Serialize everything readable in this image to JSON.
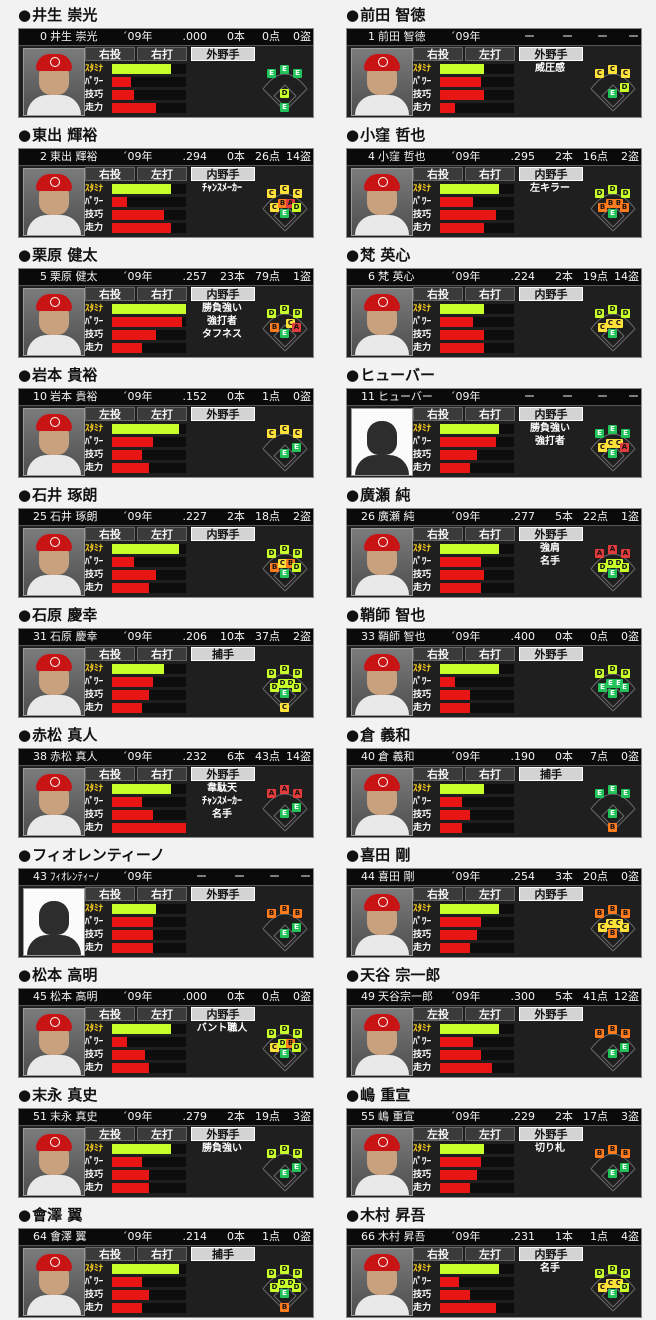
{
  "labels": {
    "stamina": "ｽﾀﾐﾅ",
    "power": "ﾊﾟﾜｰ",
    "skill": "技巧",
    "speed": "走力",
    "year": "´09年"
  },
  "colors": {
    "stamina": "#c8ff2a",
    "bars": "#e81515",
    "background": "#f2f2f2"
  },
  "players": [
    {
      "title": "井生 崇光",
      "stat_name": "井生 崇光",
      "no": "0",
      "avg": ".000",
      "hr": "0本",
      "rbi": "0点",
      "sb": "0盗",
      "throw": "右投",
      "bat": "右打",
      "position": "外野手",
      "skills": [],
      "silhouette": false,
      "stamina": 0.8,
      "power": 0.25,
      "technique": 0.3,
      "speed": 0.6,
      "fielding": {
        "LF": "E",
        "CF": "E",
        "RF": "E",
        "3B": "",
        "SS": "",
        "2B": "",
        "1B": "",
        "C": "E",
        "P": "D"
      }
    },
    {
      "title": "前田 智徳",
      "stat_name": "前田 智徳",
      "no": "1",
      "avg": "ー",
      "hr": "ー",
      "rbi": "ー",
      "sb": "ー",
      "throw": "右投",
      "bat": "左打",
      "position": "外野手",
      "skills": [
        "威圧感"
      ],
      "silhouette": false,
      "stamina": 0.6,
      "power": 0.55,
      "technique": 0.6,
      "speed": 0.2,
      "fielding": {
        "LF": "C",
        "CF": "C",
        "RF": "C",
        "3B": "",
        "SS": "",
        "2B": "",
        "1B": "D",
        "C": "",
        "P": "E"
      }
    },
    {
      "title": "東出 輝裕",
      "stat_name": "東出 輝裕",
      "no": "2",
      "avg": ".294",
      "hr": "0本",
      "rbi": "26点",
      "sb": "14盗",
      "throw": "右投",
      "bat": "左打",
      "position": "内野手",
      "skills": [
        "ﾁｬﾝｽﾒｰｶｰ"
      ],
      "silhouette": false,
      "stamina": 0.8,
      "power": 0.2,
      "technique": 0.7,
      "speed": 0.8,
      "fielding": {
        "LF": "C",
        "CF": "C",
        "RF": "C",
        "3B": "C",
        "SS": "B",
        "2B": "A",
        "1B": "D",
        "C": "",
        "P": "E"
      }
    },
    {
      "title": "小窪 哲也",
      "stat_name": "小窪 哲也",
      "no": "4",
      "avg": ".295",
      "hr": "2本",
      "rbi": "16点",
      "sb": "2盗",
      "throw": "右投",
      "bat": "右打",
      "position": "内野手",
      "skills": [
        "左キラー"
      ],
      "silhouette": false,
      "stamina": 0.8,
      "power": 0.45,
      "technique": 0.75,
      "speed": 0.6,
      "fielding": {
        "LF": "D",
        "CF": "D",
        "RF": "D",
        "3B": "B",
        "SS": "B",
        "2B": "B",
        "1B": "B",
        "C": "",
        "P": "E"
      }
    },
    {
      "title": "栗原 健太",
      "stat_name": "栗原 健太",
      "no": "5",
      "avg": ".257",
      "hr": "23本",
      "rbi": "79点",
      "sb": "1盗",
      "throw": "右投",
      "bat": "右打",
      "position": "内野手",
      "skills": [
        "勝負強い",
        "強打者",
        "タフネス"
      ],
      "silhouette": false,
      "stamina": 1.0,
      "power": 0.95,
      "technique": 0.6,
      "speed": 0.4,
      "fielding": {
        "LF": "D",
        "CF": "D",
        "RF": "D",
        "3B": "B",
        "SS": "",
        "2B": "C",
        "1B": "A",
        "C": "",
        "P": "E"
      }
    },
    {
      "title": "梵 英心",
      "stat_name": "梵 英心",
      "no": "6",
      "avg": ".224",
      "hr": "2本",
      "rbi": "19点",
      "sb": "14盗",
      "throw": "右投",
      "bat": "右打",
      "position": "内野手",
      "skills": [],
      "silhouette": false,
      "stamina": 0.6,
      "power": 0.45,
      "technique": 0.6,
      "speed": 0.6,
      "fielding": {
        "LF": "D",
        "CF": "D",
        "RF": "D",
        "3B": "C",
        "SS": "C",
        "2B": "C",
        "1B": "",
        "C": "",
        "P": "E"
      }
    },
    {
      "title": "岩本 貴裕",
      "stat_name": "岩本 貴裕",
      "no": "10",
      "avg": ".152",
      "hr": "0本",
      "rbi": "1点",
      "sb": "0盗",
      "throw": "左投",
      "bat": "左打",
      "position": "外野手",
      "skills": [],
      "silhouette": false,
      "stamina": 0.9,
      "power": 0.55,
      "technique": 0.4,
      "speed": 0.5,
      "fielding": {
        "LF": "C",
        "CF": "C",
        "RF": "C",
        "3B": "",
        "SS": "",
        "2B": "",
        "1B": "E",
        "C": "",
        "P": "E"
      }
    },
    {
      "title": "ヒューバー",
      "stat_name": "ヒューバー",
      "no": "11",
      "avg": "ー",
      "hr": "ー",
      "rbi": "ー",
      "sb": "ー",
      "throw": "右投",
      "bat": "右打",
      "position": "内野手",
      "skills": [
        "勝負強い",
        "強打者"
      ],
      "silhouette": true,
      "stamina": 0.8,
      "power": 0.75,
      "technique": 0.5,
      "speed": 0.4,
      "fielding": {
        "LF": "E",
        "CF": "E",
        "RF": "E",
        "3B": "C",
        "SS": "C",
        "2B": "C",
        "1B": "A",
        "C": "",
        "P": "E"
      }
    },
    {
      "title": "石井 琢朗",
      "stat_name": "石井 琢朗",
      "no": "25",
      "avg": ".227",
      "hr": "2本",
      "rbi": "18点",
      "sb": "2盗",
      "throw": "右投",
      "bat": "左打",
      "position": "内野手",
      "skills": [],
      "silhouette": false,
      "stamina": 0.9,
      "power": 0.3,
      "technique": 0.6,
      "speed": 0.5,
      "fielding": {
        "LF": "D",
        "CF": "D",
        "RF": "D",
        "3B": "B",
        "SS": "C",
        "2B": "B",
        "1B": "D",
        "C": "",
        "P": "E"
      }
    },
    {
      "title": "廣瀬 純",
      "stat_name": "廣瀬 純",
      "no": "26",
      "avg": ".277",
      "hr": "5本",
      "rbi": "22点",
      "sb": "1盗",
      "throw": "右投",
      "bat": "右打",
      "position": "外野手",
      "skills": [
        "強肩",
        "名手"
      ],
      "silhouette": false,
      "stamina": 0.8,
      "power": 0.55,
      "technique": 0.6,
      "speed": 0.55,
      "fielding": {
        "LF": "A",
        "CF": "A",
        "RF": "A",
        "3B": "D",
        "SS": "D",
        "2B": "D",
        "1B": "D",
        "C": "",
        "P": "E"
      }
    },
    {
      "title": "石原 慶幸",
      "stat_name": "石原 慶幸",
      "no": "31",
      "avg": ".206",
      "hr": "10本",
      "rbi": "37点",
      "sb": "2盗",
      "throw": "右投",
      "bat": "右打",
      "position": "捕手",
      "skills": [],
      "silhouette": false,
      "stamina": 0.7,
      "power": 0.55,
      "technique": 0.5,
      "speed": 0.4,
      "fielding": {
        "LF": "D",
        "CF": "D",
        "RF": "D",
        "3B": "D",
        "SS": "D",
        "2B": "D",
        "1B": "D",
        "C": "C",
        "P": "E"
      }
    },
    {
      "title": "鞘師 智也",
      "stat_name": "鞘師 智也",
      "no": "33",
      "avg": ".400",
      "hr": "0本",
      "rbi": "0点",
      "sb": "0盗",
      "throw": "右投",
      "bat": "右打",
      "position": "外野手",
      "skills": [],
      "silhouette": false,
      "stamina": 0.8,
      "power": 0.2,
      "technique": 0.4,
      "speed": 0.4,
      "fielding": {
        "LF": "D",
        "CF": "D",
        "RF": "D",
        "3B": "E",
        "SS": "E",
        "2B": "E",
        "1B": "E",
        "C": "",
        "P": "E"
      }
    },
    {
      "title": "赤松 真人",
      "stat_name": "赤松 真人",
      "no": "38",
      "avg": ".232",
      "hr": "6本",
      "rbi": "43点",
      "sb": "14盗",
      "throw": "右投",
      "bat": "右打",
      "position": "外野手",
      "skills": [
        "韋駄天",
        "ﾁｬﾝｽﾒｰｶｰ",
        "名手"
      ],
      "silhouette": false,
      "stamina": 0.8,
      "power": 0.4,
      "technique": 0.55,
      "speed": 1.0,
      "fielding": {
        "LF": "A",
        "CF": "A",
        "RF": "A",
        "3B": "",
        "SS": "",
        "2B": "",
        "1B": "E",
        "C": "",
        "P": "E"
      }
    },
    {
      "title": "倉 義和",
      "stat_name": "倉 義和",
      "no": "40",
      "avg": ".190",
      "hr": "0本",
      "rbi": "7点",
      "sb": "0盗",
      "throw": "右投",
      "bat": "右打",
      "position": "捕手",
      "skills": [],
      "silhouette": false,
      "stamina": 0.6,
      "power": 0.3,
      "technique": 0.4,
      "speed": 0.3,
      "fielding": {
        "LF": "E",
        "CF": "E",
        "RF": "E",
        "3B": "",
        "SS": "",
        "2B": "",
        "1B": "",
        "C": "B",
        "P": "E"
      }
    },
    {
      "title": "フィオレンティーノ",
      "stat_name": "ﾌｨｵﾚﾝﾃｨｰﾉ",
      "no": "43",
      "avg": "ー",
      "hr": "ー",
      "rbi": "ー",
      "sb": "ー",
      "throw": "右投",
      "bat": "右打",
      "position": "外野手",
      "skills": [],
      "silhouette": true,
      "stamina": 0.6,
      "power": 0.55,
      "technique": 0.55,
      "speed": 0.55,
      "fielding": {
        "LF": "B",
        "CF": "B",
        "RF": "B",
        "3B": "",
        "SS": "",
        "2B": "",
        "1B": "E",
        "C": "",
        "P": "E"
      }
    },
    {
      "title": "喜田 剛",
      "stat_name": "喜田 剛",
      "no": "44",
      "avg": ".254",
      "hr": "3本",
      "rbi": "20点",
      "sb": "0盗",
      "throw": "右投",
      "bat": "左打",
      "position": "内野手",
      "skills": [],
      "silhouette": false,
      "stamina": 0.8,
      "power": 0.55,
      "technique": 0.5,
      "speed": 0.4,
      "fielding": {
        "LF": "B",
        "CF": "B",
        "RF": "B",
        "3B": "C",
        "SS": "C",
        "2B": "C",
        "1B": "C",
        "C": "",
        "P": "B"
      }
    },
    {
      "title": "松本 高明",
      "stat_name": "松本 高明",
      "no": "45",
      "avg": ".000",
      "hr": "0本",
      "rbi": "0点",
      "sb": "0盗",
      "throw": "右投",
      "bat": "左打",
      "position": "内野手",
      "skills": [
        "バント職人"
      ],
      "silhouette": false,
      "stamina": 0.8,
      "power": 0.2,
      "technique": 0.45,
      "speed": 0.5,
      "fielding": {
        "LF": "D",
        "CF": "D",
        "RF": "D",
        "3B": "C",
        "SS": "D",
        "2B": "B",
        "1B": "D",
        "C": "",
        "P": "E"
      }
    },
    {
      "title": "天谷 宗一郎",
      "stat_name": "天谷宗一郎",
      "no": "49",
      "avg": ".300",
      "hr": "5本",
      "rbi": "41点",
      "sb": "12盗",
      "throw": "左投",
      "bat": "左打",
      "position": "外野手",
      "skills": [],
      "silhouette": false,
      "stamina": 0.8,
      "power": 0.45,
      "technique": 0.55,
      "speed": 0.7,
      "fielding": {
        "LF": "B",
        "CF": "B",
        "RF": "B",
        "3B": "",
        "SS": "",
        "2B": "",
        "1B": "E",
        "C": "",
        "P": "E"
      }
    },
    {
      "title": "末永 真史",
      "stat_name": "末永 真史",
      "no": "51",
      "avg": ".279",
      "hr": "2本",
      "rbi": "19点",
      "sb": "3盗",
      "throw": "左投",
      "bat": "左打",
      "position": "外野手",
      "skills": [
        "勝負強い"
      ],
      "silhouette": false,
      "stamina": 0.8,
      "power": 0.4,
      "technique": 0.5,
      "speed": 0.5,
      "fielding": {
        "LF": "D",
        "CF": "D",
        "RF": "D",
        "3B": "",
        "SS": "",
        "2B": "",
        "1B": "E",
        "C": "",
        "P": "E"
      }
    },
    {
      "title": "嶋 重宣",
      "stat_name": "嶋 重宣",
      "no": "55",
      "avg": ".229",
      "hr": "2本",
      "rbi": "17点",
      "sb": "3盗",
      "throw": "左投",
      "bat": "左打",
      "position": "外野手",
      "skills": [
        "切り札"
      ],
      "silhouette": false,
      "stamina": 0.6,
      "power": 0.55,
      "technique": 0.5,
      "speed": 0.4,
      "fielding": {
        "LF": "B",
        "CF": "B",
        "RF": "B",
        "3B": "",
        "SS": "",
        "2B": "",
        "1B": "E",
        "C": "",
        "P": "E"
      }
    },
    {
      "title": "會澤 翼",
      "stat_name": "會澤 翼",
      "no": "64",
      "avg": ".214",
      "hr": "0本",
      "rbi": "1点",
      "sb": "0盗",
      "throw": "右投",
      "bat": "右打",
      "position": "捕手",
      "skills": [],
      "silhouette": false,
      "stamina": 0.9,
      "power": 0.4,
      "technique": 0.5,
      "speed": 0.4,
      "fielding": {
        "LF": "D",
        "CF": "D",
        "RF": "D",
        "3B": "D",
        "SS": "D",
        "2B": "D",
        "1B": "D",
        "C": "B",
        "P": "E"
      }
    },
    {
      "title": "木村 昇吾",
      "stat_name": "木村 昇吾",
      "no": "66",
      "avg": ".231",
      "hr": "1本",
      "rbi": "1点",
      "sb": "4盗",
      "throw": "右投",
      "bat": "左打",
      "position": "内野手",
      "skills": [
        "名手"
      ],
      "silhouette": false,
      "stamina": 0.8,
      "power": 0.25,
      "technique": 0.4,
      "speed": 0.75,
      "fielding": {
        "LF": "D",
        "CF": "D",
        "RF": "D",
        "3B": "C",
        "SS": "C",
        "2B": "C",
        "1B": "D",
        "C": "",
        "P": "E"
      }
    }
  ]
}
